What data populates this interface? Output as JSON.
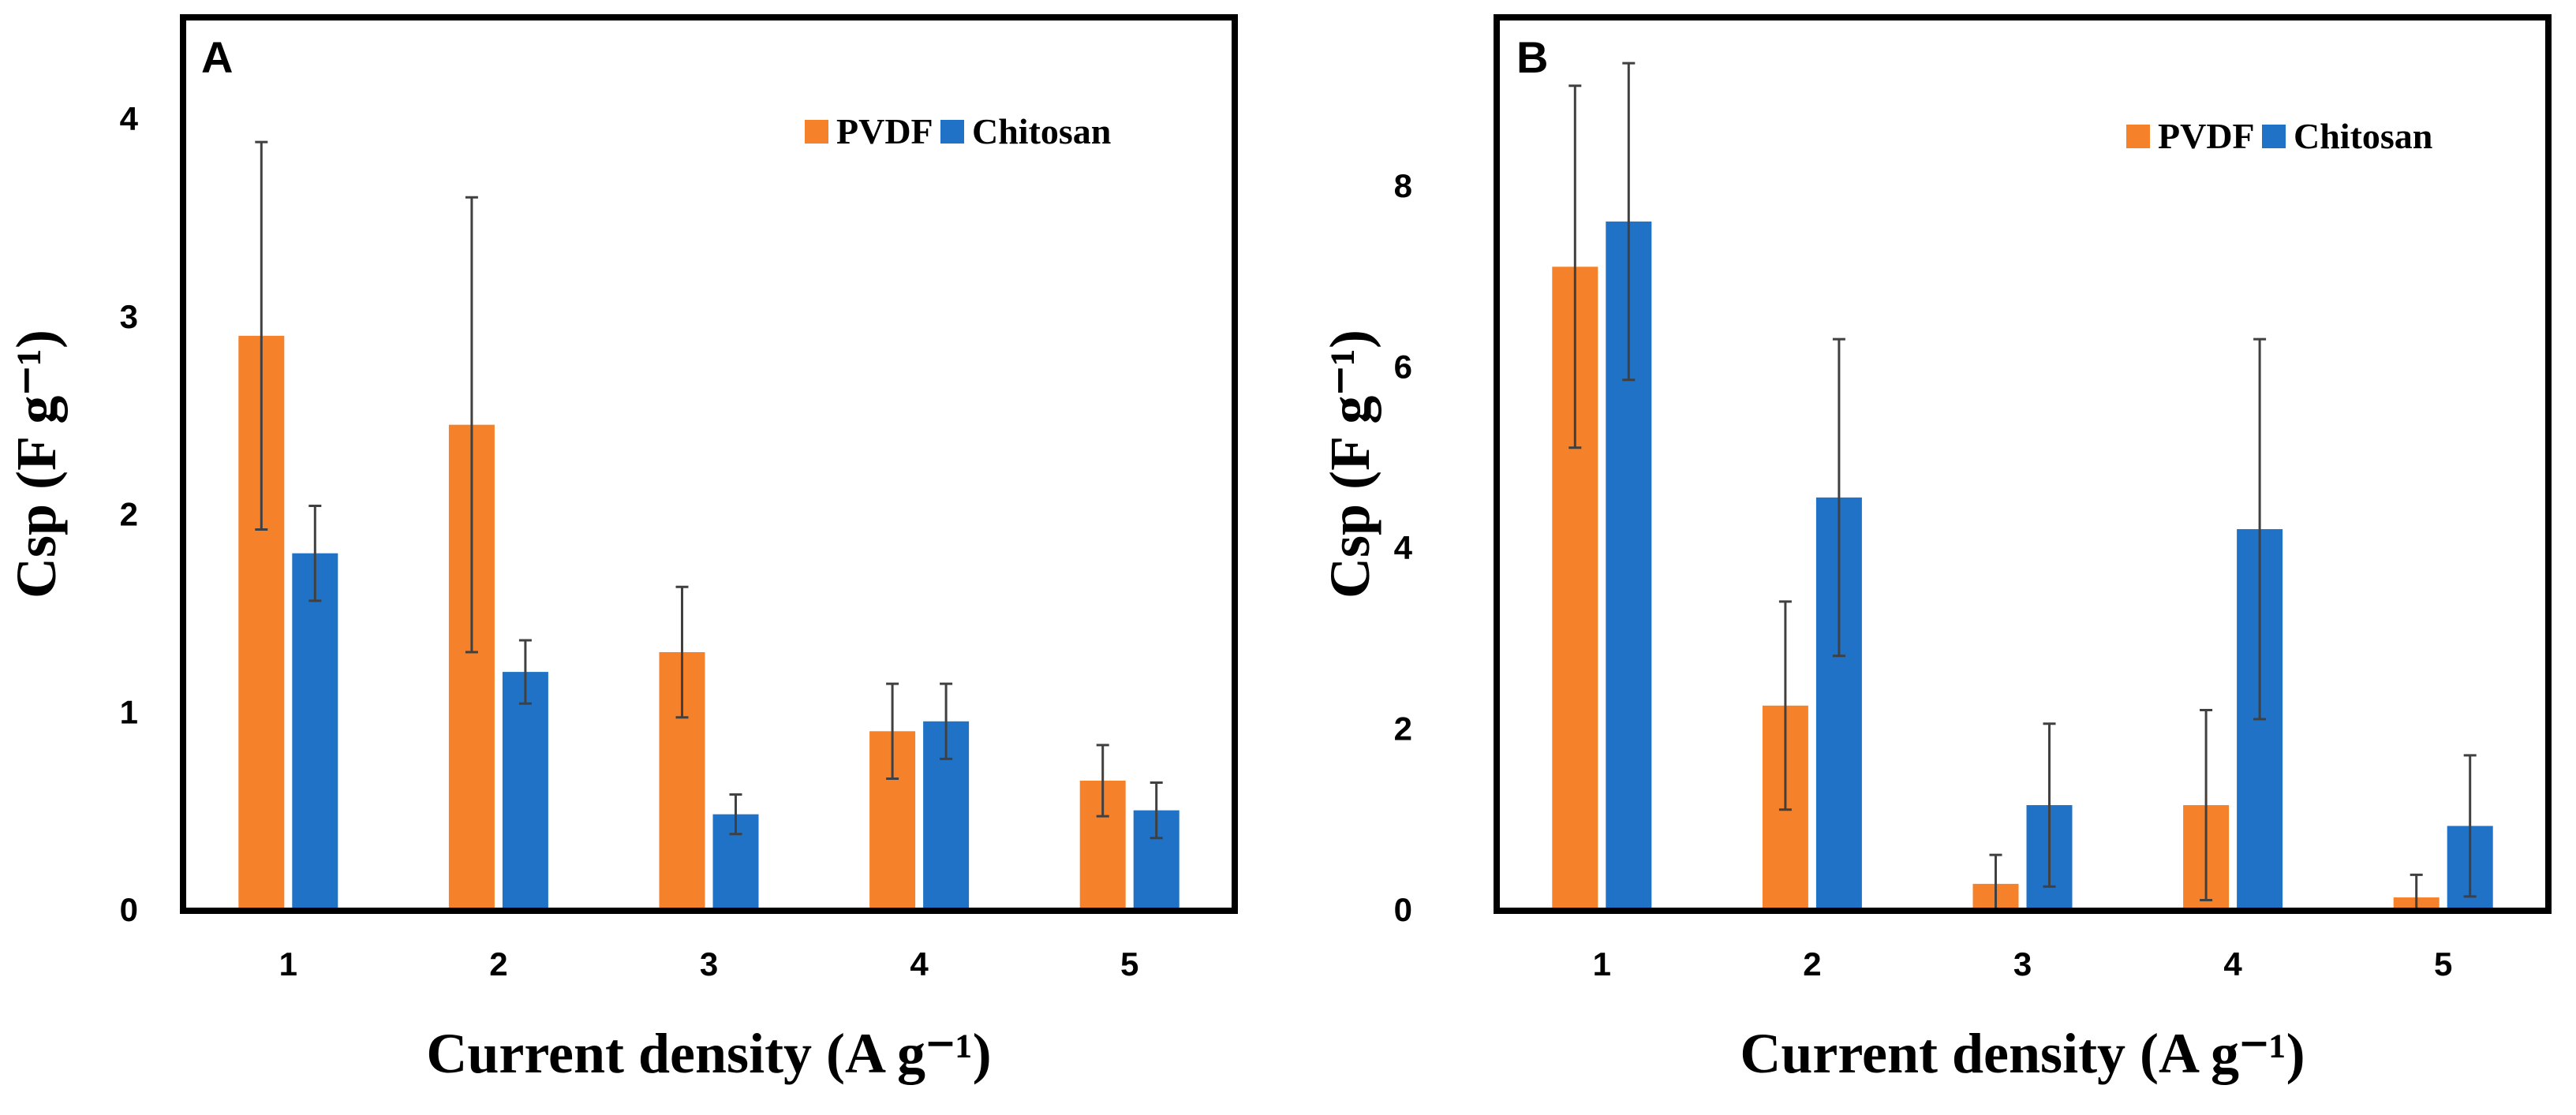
{
  "chart_data": [
    {
      "panel": "A",
      "type": "bar",
      "categories": [
        "1",
        "2",
        "3",
        "4",
        "5"
      ],
      "ylim": [
        0,
        4
      ],
      "yticks": [
        "0",
        "1",
        "2",
        "3",
        "4"
      ],
      "ylabel": "Csp (F g⁻¹)",
      "xlabel": "Current density (A g⁻¹)",
      "legend_position": "top-right",
      "grid": false,
      "series": [
        {
          "name": "PVDF",
          "color": "#F5822A",
          "values": [
            2.9,
            2.45,
            1.3,
            0.9,
            0.65
          ],
          "errors": [
            0.98,
            1.15,
            0.33,
            0.24,
            0.18
          ]
        },
        {
          "name": "Chitosan",
          "color": "#1F72C6",
          "values": [
            1.8,
            1.2,
            0.48,
            0.95,
            0.5
          ],
          "errors": [
            0.24,
            0.16,
            0.1,
            0.19,
            0.14
          ]
        }
      ]
    },
    {
      "panel": "B",
      "type": "bar",
      "categories": [
        "1",
        "2",
        "3",
        "4",
        "5"
      ],
      "ylim": [
        0,
        8
      ],
      "yticks": [
        "0",
        "2",
        "4",
        "6",
        "8"
      ],
      "ylabel": "Csp (F g⁻¹)",
      "xlabel": "Current density (A g⁻¹)",
      "legend_position": "top-right",
      "grid": false,
      "series": [
        {
          "name": "PVDF",
          "color": "#F5822A",
          "values": [
            7.1,
            2.25,
            0.28,
            1.15,
            0.13
          ],
          "errors": [
            2.0,
            1.15,
            0.32,
            1.05,
            0.25
          ]
        },
        {
          "name": "Chitosan",
          "color": "#1F72C6",
          "values": [
            7.6,
            4.55,
            1.15,
            4.2,
            0.92
          ],
          "errors": [
            1.75,
            1.75,
            0.9,
            2.1,
            0.78
          ]
        }
      ]
    }
  ]
}
